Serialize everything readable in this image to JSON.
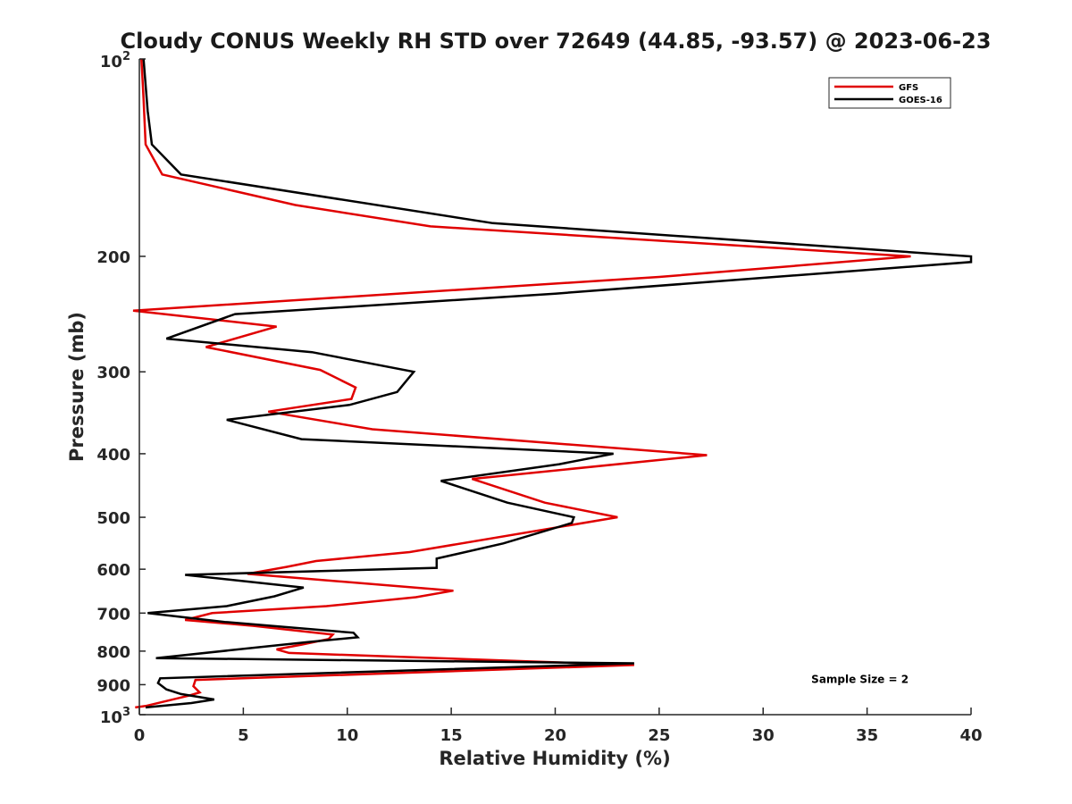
{
  "chart_data": {
    "type": "line",
    "title": "Cloudy CONUS Weekly RH STD over 72649 (44.85, -93.57) @ 2023-06-23",
    "xlabel": "Relative Humidity (%)",
    "ylabel": "Pressure (mb)",
    "xlim": [
      0,
      40
    ],
    "ylim": [
      100,
      1000
    ],
    "y_scale": "log",
    "y_reversed": true,
    "x_ticks": [
      0,
      5,
      10,
      15,
      20,
      25,
      30,
      35,
      40
    ],
    "y_ticks": [
      {
        "value": 100,
        "base": "10",
        "exp": "2"
      },
      {
        "value": 200,
        "label": "200"
      },
      {
        "value": 300,
        "label": "300"
      },
      {
        "value": 400,
        "label": "400"
      },
      {
        "value": 500,
        "label": "500"
      },
      {
        "value": 600,
        "label": "600"
      },
      {
        "value": 700,
        "label": "700"
      },
      {
        "value": 800,
        "label": "800"
      },
      {
        "value": 900,
        "label": "900"
      },
      {
        "value": 1000,
        "base": "10",
        "exp": "3"
      }
    ],
    "grid": false,
    "legend_position": "top-right",
    "series": [
      {
        "name": "GFS",
        "color": "#e00000",
        "points": [
          [
            0.1,
            100
          ],
          [
            0.2,
            115
          ],
          [
            0.3,
            135
          ],
          [
            1.1,
            150
          ],
          [
            7.5,
            167
          ],
          [
            14,
            180
          ],
          [
            37.1,
            200
          ],
          [
            25,
            215
          ],
          [
            -0.3,
            242
          ],
          [
            6.6,
            256
          ],
          [
            3.2,
            275
          ],
          [
            8.7,
            298
          ],
          [
            10.4,
            317
          ],
          [
            10.2,
            330
          ],
          [
            6.2,
            345
          ],
          [
            11.2,
            367
          ],
          [
            27.3,
            402
          ],
          [
            16,
            437
          ],
          [
            19.5,
            475
          ],
          [
            23,
            500
          ],
          [
            13,
            565
          ],
          [
            8.5,
            583
          ],
          [
            7.1,
            595
          ],
          [
            5.2,
            610
          ],
          [
            15.1,
            647
          ],
          [
            13.3,
            662
          ],
          [
            9,
            683
          ],
          [
            3.5,
            700
          ],
          [
            2.2,
            717
          ],
          [
            5.5,
            732
          ],
          [
            9.3,
            755
          ],
          [
            9.1,
            767
          ],
          [
            7.8,
            782
          ],
          [
            6.6,
            795
          ],
          [
            7.2,
            805
          ],
          [
            23.8,
            840
          ],
          [
            2.7,
            885
          ],
          [
            2.6,
            905
          ],
          [
            2.9,
            925
          ],
          [
            2.4,
            935
          ],
          [
            0.3,
            970
          ],
          [
            -0.2,
            975
          ]
        ]
      },
      {
        "name": "GOES-16",
        "color": "#000000",
        "points": [
          [
            0.2,
            100
          ],
          [
            0.4,
            120
          ],
          [
            0.6,
            135
          ],
          [
            2,
            150
          ],
          [
            17,
            178
          ],
          [
            40,
            200
          ],
          [
            40,
            204
          ],
          [
            20,
            228
          ],
          [
            4.6,
            245
          ],
          [
            1.3,
            267
          ],
          [
            8.3,
            280
          ],
          [
            13.2,
            300
          ],
          [
            12.4,
            322
          ],
          [
            10.1,
            337
          ],
          [
            4.2,
            355
          ],
          [
            7.8,
            380
          ],
          [
            22.8,
            400
          ],
          [
            20.2,
            415
          ],
          [
            14.5,
            440
          ],
          [
            17.7,
            475
          ],
          [
            20.9,
            500
          ],
          [
            20.8,
            510
          ],
          [
            17.5,
            548
          ],
          [
            14.3,
            578
          ],
          [
            14.3,
            597
          ],
          [
            2.2,
            612
          ],
          [
            7.9,
            640
          ],
          [
            6.5,
            660
          ],
          [
            4.2,
            683
          ],
          [
            0.4,
            700
          ],
          [
            4.1,
            722
          ],
          [
            10.3,
            750
          ],
          [
            10.5,
            762
          ],
          [
            8.1,
            775
          ],
          [
            0.8,
            820
          ],
          [
            23.8,
            835
          ],
          [
            1,
            880
          ],
          [
            0.9,
            895
          ],
          [
            1.3,
            915
          ],
          [
            2,
            930
          ],
          [
            3.6,
            948
          ],
          [
            2.5,
            960
          ],
          [
            0.3,
            975
          ]
        ]
      }
    ],
    "annotations": [
      {
        "text": "Sample Size = 2",
        "x": 35,
        "y": 880
      }
    ]
  }
}
